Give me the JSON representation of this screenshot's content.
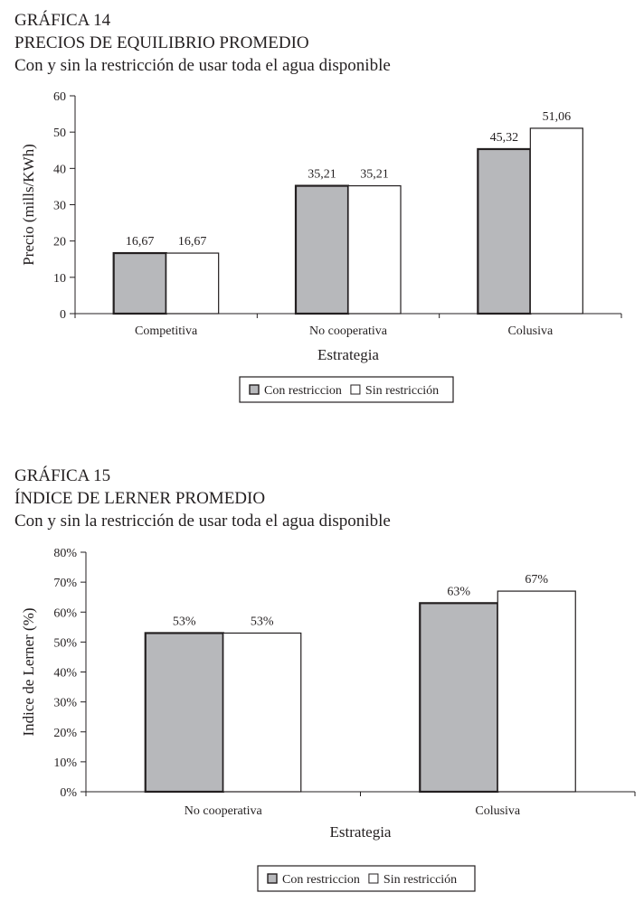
{
  "chart_data": [
    {
      "type": "bar",
      "figure_label": "GRÁFICA 14",
      "title": "PRECIOS DE EQUILIBRIO PROMEDIO",
      "subtitle": "Con y sin la restricción de usar toda el agua disponible",
      "xlabel": "Estrategia",
      "ylabel": "Precio (mills/KWh)",
      "categories": [
        "Competitiva",
        "No cooperativa",
        "Colusiva"
      ],
      "series": [
        {
          "name": "Con restriccion",
          "values": [
            16.67,
            35.21,
            45.32
          ],
          "labels": [
            "16,67",
            "35,21",
            "45,32"
          ],
          "color": "#b7b8bb"
        },
        {
          "name": "Sin restricción",
          "values": [
            16.67,
            35.21,
            51.06
          ],
          "labels": [
            "16,67",
            "35,21",
            "51,06"
          ],
          "color": "#ffffff"
        }
      ],
      "ylim": [
        0,
        60
      ],
      "yticks": [
        0,
        10,
        20,
        30,
        40,
        50,
        60
      ],
      "ytick_labels": [
        "0",
        "10",
        "20",
        "30",
        "40",
        "50",
        "60"
      ],
      "grid": false,
      "legend_position": "bottom-center"
    },
    {
      "type": "bar",
      "figure_label": "GRÁFICA 15",
      "title": "ÍNDICE DE LERNER PROMEDIO",
      "subtitle": "Con y sin la restricción de usar toda el agua disponible",
      "xlabel": "Estrategia",
      "ylabel": "Indice de Lerner (%)",
      "categories": [
        "No cooperativa",
        "Colusiva"
      ],
      "series": [
        {
          "name": "Con restriccion",
          "values": [
            53,
            63
          ],
          "labels": [
            "53%",
            "63%"
          ],
          "color": "#b7b8bb"
        },
        {
          "name": "Sin restricción",
          "values": [
            53,
            67
          ],
          "labels": [
            "53%",
            "67%"
          ],
          "color": "#ffffff"
        }
      ],
      "ylim": [
        0,
        80
      ],
      "yticks": [
        0,
        10,
        20,
        30,
        40,
        50,
        60,
        70,
        80
      ],
      "ytick_labels": [
        "0%",
        "10%",
        "20%",
        "30%",
        "40%",
        "50%",
        "60%",
        "70%",
        "80%"
      ],
      "grid": false,
      "legend_position": "bottom-center"
    }
  ]
}
